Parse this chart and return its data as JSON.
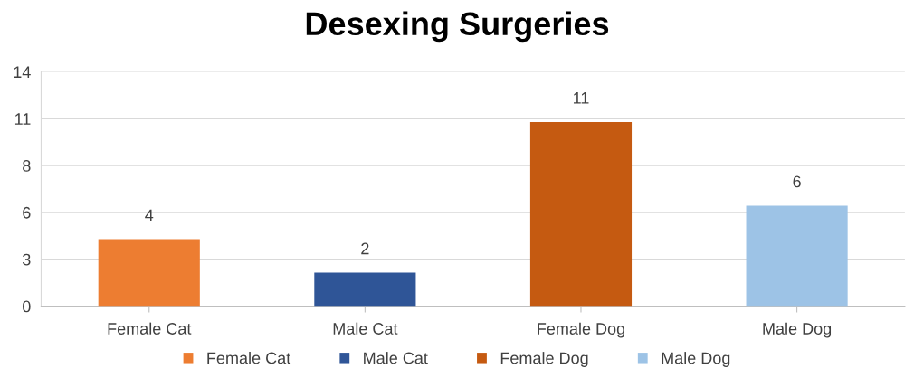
{
  "chart_data": {
    "type": "bar",
    "title": "Desexing Surgeries",
    "categories": [
      "Female Cat",
      "Male Cat",
      "Female Dog",
      "Male Dog"
    ],
    "series": [
      {
        "name": "Female Cat",
        "color": "#ed7d31",
        "values": [
          4,
          null,
          null,
          null
        ]
      },
      {
        "name": "Male Cat",
        "color": "#2f5597",
        "values": [
          null,
          2,
          null,
          null
        ]
      },
      {
        "name": "Female Dog",
        "color": "#c55a11",
        "values": [
          null,
          null,
          11,
          null
        ]
      },
      {
        "name": "Male Dog",
        "color": "#9dc3e6",
        "values": [
          null,
          null,
          null,
          6
        ]
      }
    ],
    "ylim": [
      0,
      14
    ],
    "yticks": [
      0,
      {
        "value": 2.8,
        "label": "3"
      },
      {
        "value": 5.6,
        "label": "6"
      },
      {
        "value": 8.4,
        "label": "8"
      },
      {
        "value": 11.2,
        "label": "11"
      },
      14
    ],
    "grid": "y",
    "data_labels": true,
    "legend": "bottom"
  }
}
